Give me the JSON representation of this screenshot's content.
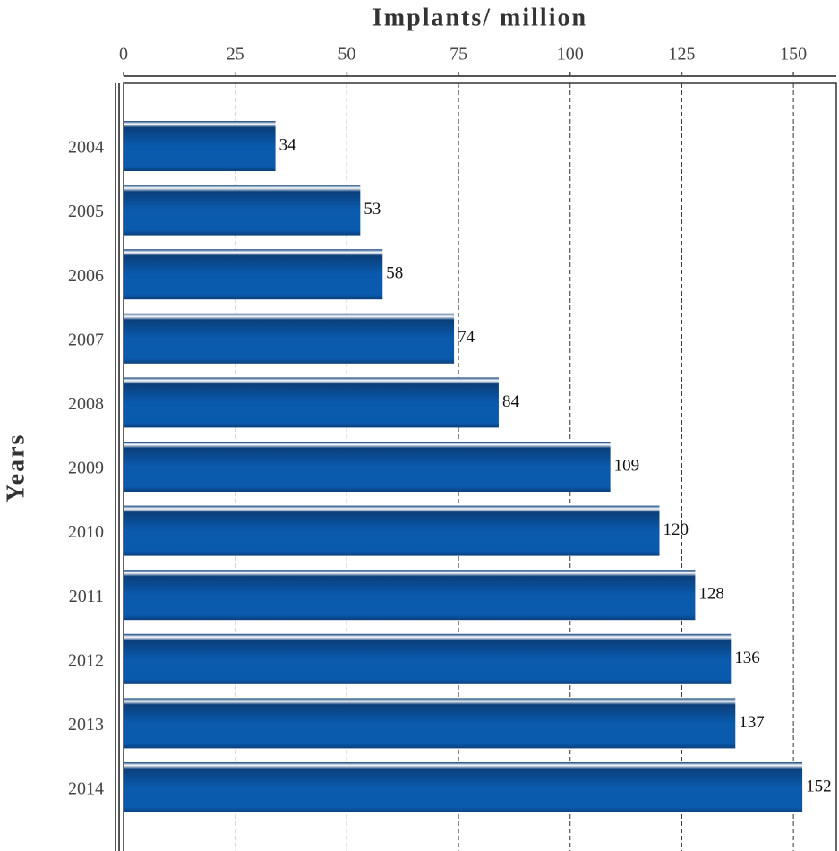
{
  "chart_data": {
    "type": "bar",
    "orientation": "horizontal",
    "title": "Implants/ million",
    "y_label": "Years",
    "categories": [
      "2004",
      "2005",
      "2006",
      "2007",
      "2008",
      "2009",
      "2010",
      "2011",
      "2012",
      "2013",
      "2014"
    ],
    "values": [
      34,
      53,
      58,
      74,
      84,
      109,
      120,
      128,
      136,
      137,
      152
    ],
    "color": "#0a5aae",
    "xlim": [
      0,
      160
    ],
    "xticks": [
      0,
      25,
      50,
      75,
      100,
      125,
      150
    ],
    "grid": true
  }
}
